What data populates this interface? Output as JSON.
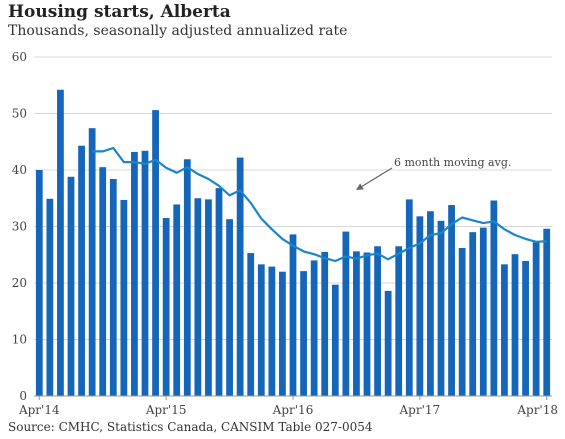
{
  "chart_data": {
    "type": "bar",
    "title": "Housing starts, Alberta",
    "subtitle": "Thousands, seasonally adjusted annualized rate",
    "source": "Source: CMHC, Statistics Canada, CANSIM Table 027-0054",
    "x_tick_labels": [
      {
        "index": 0,
        "label": "Apr'14"
      },
      {
        "index": 12,
        "label": "Apr'15"
      },
      {
        "index": 24,
        "label": "Apr'16"
      },
      {
        "index": 36,
        "label": "Apr'17"
      },
      {
        "index": 48,
        "label": "Apr'18"
      }
    ],
    "y_ticks": [
      0,
      10,
      20,
      30,
      40,
      50,
      60
    ],
    "ylim": [
      0,
      60
    ],
    "grid": true,
    "bar_color": "#1565b8",
    "line_color": "#1a86c8",
    "series": [
      {
        "type": "bar",
        "values": [
          40,
          34.9,
          54.2,
          38.8,
          44.3,
          47.4,
          40.5,
          38.4,
          34.7,
          43.2,
          43.4,
          50.6,
          31.5,
          33.9,
          41.9,
          35,
          34.8,
          36.8,
          31.3,
          42.2,
          25.3,
          23.3,
          22.9,
          22,
          28.6,
          22.1,
          24,
          25.5,
          19.7,
          29.1,
          25.6,
          25.4,
          26.5,
          18.6,
          26.5,
          34.8,
          31.8,
          32.7,
          31,
          33.8,
          26.2,
          29,
          29.8,
          34.6,
          23.3,
          25.1,
          23.9,
          27.2,
          29.6
        ]
      },
      {
        "type": "line",
        "name": "6 month moving avg.",
        "values": [
          null,
          null,
          null,
          null,
          null,
          43.3,
          43.3,
          43.9,
          41.4,
          41.4,
          41.1,
          41.8,
          40.4,
          39.5,
          40.5,
          39.3,
          38.4,
          37.2,
          35.5,
          36.4,
          34.2,
          31.4,
          29.5,
          27.8,
          26.6,
          25.6,
          25.1,
          24.4,
          23.9,
          24.7,
          24.3,
          24.9,
          25.2,
          24.2,
          25.2,
          26.2,
          27,
          28.5,
          28.8,
          30.4,
          31.6,
          31.1,
          30.6,
          30.9,
          29.5,
          28.5,
          27.8,
          27.3,
          27.4
        ]
      }
    ],
    "annotation": {
      "text": "6 month moving avg.",
      "arrow_to_index": 31
    }
  }
}
